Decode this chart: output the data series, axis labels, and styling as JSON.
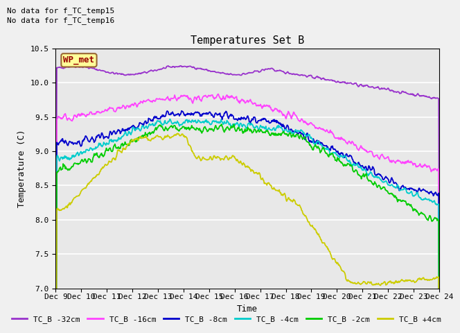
{
  "title": "Temperatures Set B",
  "xlabel": "Time",
  "ylabel": "Temperature (C)",
  "ylim": [
    7.0,
    10.5
  ],
  "yticks": [
    7.0,
    7.5,
    8.0,
    8.5,
    9.0,
    9.5,
    10.0,
    10.5
  ],
  "x_labels": [
    "Dec 9",
    "Dec 10",
    "Dec 11",
    "Dec 12",
    "Dec 13",
    "Dec 14",
    "Dec 15",
    "Dec 16",
    "Dec 17",
    "Dec 18",
    "Dec 19",
    "Dec 20",
    "Dec 21",
    "Dec 22",
    "Dec 23",
    "Dec 24"
  ],
  "text_no_data1": "No data for f_TC_temp15",
  "text_no_data2": "No data for f_TC_temp16",
  "wp_met_label": "WP_met",
  "legend_entries": [
    "TC_B -32cm",
    "TC_B -16cm",
    "TC_B -8cm",
    "TC_B -4cm",
    "TC_B -2cm",
    "TC_B +4cm"
  ],
  "colors": {
    "TC_B_32cm": "#9933cc",
    "TC_B_16cm": "#ff44ff",
    "TC_B_8cm": "#0000cc",
    "TC_B_4cm": "#00cccc",
    "TC_B_2cm": "#00cc00",
    "TC_B_p4cm": "#cccc00",
    "wp_met_bg": "#ffff99",
    "wp_met_border": "#996633",
    "wp_met_text": "#990000"
  },
  "plot_bg": "#e8e8e8",
  "grid_color": "#ffffff",
  "n_days": 15,
  "seed": 42
}
